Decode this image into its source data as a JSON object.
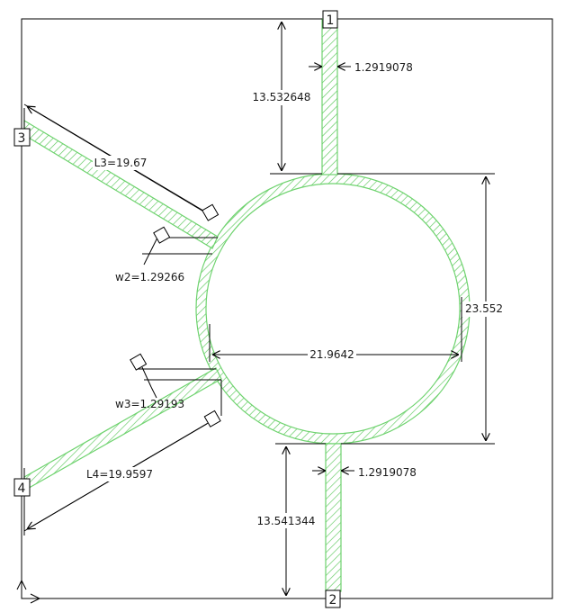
{
  "colors": {
    "trace_stroke": "#6ed36e",
    "hatch": "#5cc85c",
    "lines": "#000000",
    "background": "#ffffff"
  },
  "ports": {
    "p1": "1",
    "p2": "2",
    "p3": "3",
    "p4": "4"
  },
  "dimensions": {
    "top_stub_length": "13.532648",
    "top_stub_width": "1.2919078",
    "bottom_stub_length": "13.541344",
    "bottom_stub_width": "1.2919078",
    "ring_height": "23.552",
    "ring_width": "21.9642",
    "l3": "L3=19.67",
    "w2": "w2=1.29266",
    "l4": "L4=19.9597",
    "w3": "w3=1.29193"
  },
  "icons": {
    "origin": "origin-axis-icon",
    "handle": "edit-handle-icon"
  }
}
